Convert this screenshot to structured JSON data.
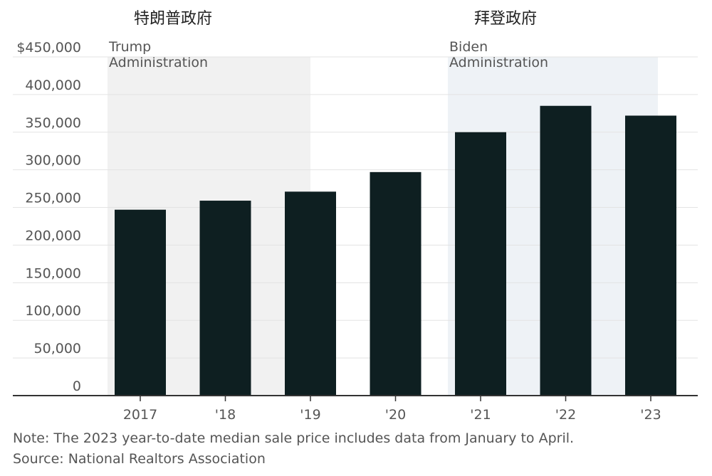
{
  "headers": {
    "trump_cn": "特朗普政府",
    "biden_cn": "拜登政府"
  },
  "chart_data": {
    "type": "bar",
    "categories": [
      "2017",
      "'18",
      "'19",
      "'20",
      "'21",
      "'22",
      "'23"
    ],
    "values": [
      247000,
      259000,
      271000,
      297000,
      350000,
      385000,
      372000
    ],
    "ylim": [
      0,
      450000
    ],
    "yticks": [
      0,
      50000,
      100000,
      150000,
      200000,
      250000,
      300000,
      350000,
      400000,
      450000
    ],
    "ytick_labels": [
      "0",
      "50,000",
      "100,000",
      "150,000",
      "200,000",
      "250,000",
      "300,000",
      "350,000",
      "400,000",
      "$450,000"
    ],
    "grid": true,
    "bar_color": "#0e1f21",
    "regions": [
      {
        "label_line1": "Trump",
        "label_line2": "Administration",
        "start": "2017",
        "end": "'19",
        "color": "#f1f1f1"
      },
      {
        "label_line1": "Biden",
        "label_line2": "Administration",
        "start": "'21",
        "end": "'23",
        "color": "#eef2f6"
      }
    ]
  },
  "footer": {
    "note": "Note: The 2023 year-to-date median sale price includes data from January to April.",
    "source": "Source: National Realtors Association"
  }
}
